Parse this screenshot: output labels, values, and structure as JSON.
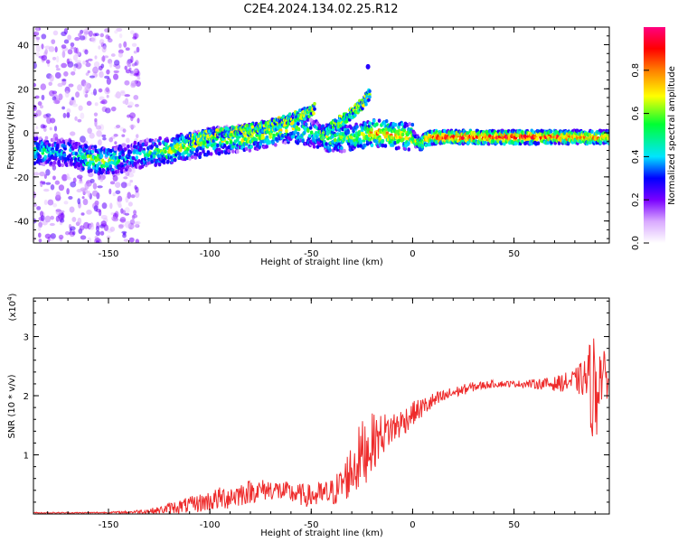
{
  "figure_title": "C2E4.2024.134.02.25.R12",
  "colors": {
    "snr_line": "#ee2b2b",
    "axis": "#000000"
  },
  "chart_data": [
    {
      "type": "heatmap",
      "title": "C2E4.2024.134.02.25.R12",
      "xlabel": "Height of straight line (km)",
      "ylabel": "Frequency (Hz)",
      "xlim": [
        -187,
        97
      ],
      "ylim": [
        -50,
        48
      ],
      "x_ticks": [
        -150,
        -100,
        -50,
        0,
        50
      ],
      "y_ticks": [
        -40,
        -20,
        0,
        20,
        40
      ],
      "colorbar": {
        "label": "Normalized spectral amplitude",
        "range": [
          0,
          1
        ],
        "ticks": [
          "0.0",
          "0.2",
          "0.4",
          "0.6",
          "0.8"
        ],
        "colormap": [
          "#ffffff",
          "#d9a9ff",
          "#7a00ff",
          "#0000ff",
          "#00e5ff",
          "#00ff33",
          "#ffff00",
          "#ff7f00",
          "#ff0000",
          "#ff0080"
        ]
      },
      "ridge": {
        "x": [
          -187,
          -170,
          -160,
          -150,
          -140,
          -130,
          -120,
          -110,
          -100,
          -90,
          -80,
          -70,
          -60,
          -50,
          -40,
          -30,
          -22,
          -20,
          -10,
          0,
          2,
          4,
          6,
          10,
          30,
          50,
          70,
          97
        ],
        "frequency_hz": [
          -8,
          -9,
          -12,
          -13,
          -11,
          -9,
          -8,
          -6,
          -4,
          -3,
          -2,
          0,
          2,
          0,
          -3,
          -2,
          -1,
          0,
          -1,
          -2,
          -4,
          -5,
          -3,
          -2,
          -2,
          -2,
          -2,
          -2
        ],
        "peak_amplitude": [
          0.5,
          0.4,
          0.6,
          0.6,
          0.4,
          0.5,
          0.65,
          0.6,
          0.6,
          0.6,
          0.65,
          0.65,
          0.6,
          0.5,
          0.6,
          0.6,
          0.7,
          0.8,
          0.75,
          0.7,
          0.6,
          0.6,
          0.8,
          0.85,
          0.9,
          0.9,
          0.85,
          0.8
        ]
      },
      "secondary_branches": [
        {
          "x": [
            -110,
            -90,
            -70,
            -55,
            -48
          ],
          "frequency_hz": [
            -3,
            0,
            3,
            8,
            11
          ]
        },
        {
          "x": [
            -45,
            -38,
            -30,
            -24,
            -21
          ],
          "frequency_hz": [
            -2,
            4,
            9,
            14,
            18
          ]
        }
      ],
      "isolated_feature": {
        "x": -22,
        "frequency_hz": 30
      },
      "noise_region_x": [
        -187,
        -135
      ]
    },
    {
      "type": "line",
      "xlabel": "Height of straight line (km)",
      "ylabel": "SNR (10 * v/v)",
      "y_multiplier_label": "(x10",
      "y_multiplier_exponent": "4",
      "multiplier_close": ")",
      "xlim": [
        -187,
        97
      ],
      "ylim": [
        0,
        3.65
      ],
      "x_ticks": [
        -150,
        -100,
        -50,
        0,
        50
      ],
      "y_ticks": [
        1,
        2,
        3
      ],
      "series": [
        {
          "x": [
            -187,
            -160,
            -140,
            -125,
            -120,
            -110,
            -100,
            -90,
            -80,
            -70,
            -60,
            -50,
            -40,
            -35,
            -30,
            -25,
            -20,
            -15,
            -10,
            -5,
            0,
            10,
            20,
            30,
            40,
            50,
            60,
            70,
            80,
            85,
            88,
            90,
            92,
            95,
            97
          ],
          "y": [
            0.02,
            0.02,
            0.03,
            0.06,
            0.1,
            0.15,
            0.22,
            0.3,
            0.38,
            0.42,
            0.35,
            0.3,
            0.35,
            0.5,
            0.75,
            1.0,
            1.2,
            1.35,
            1.45,
            1.55,
            1.7,
            1.9,
            2.05,
            2.15,
            2.2,
            2.2,
            2.2,
            2.2,
            2.25,
            2.3,
            2.2,
            2.0,
            2.4,
            2.3,
            2.3
          ],
          "noise_amplitude": [
            0.01,
            0.01,
            0.02,
            0.06,
            0.1,
            0.14,
            0.18,
            0.22,
            0.2,
            0.18,
            0.18,
            0.2,
            0.25,
            0.3,
            0.5,
            0.6,
            0.5,
            0.35,
            0.3,
            0.25,
            0.2,
            0.15,
            0.1,
            0.08,
            0.06,
            0.05,
            0.08,
            0.12,
            0.2,
            0.35,
            0.8,
            1.2,
            0.6,
            0.4,
            0.3
          ]
        }
      ]
    }
  ]
}
